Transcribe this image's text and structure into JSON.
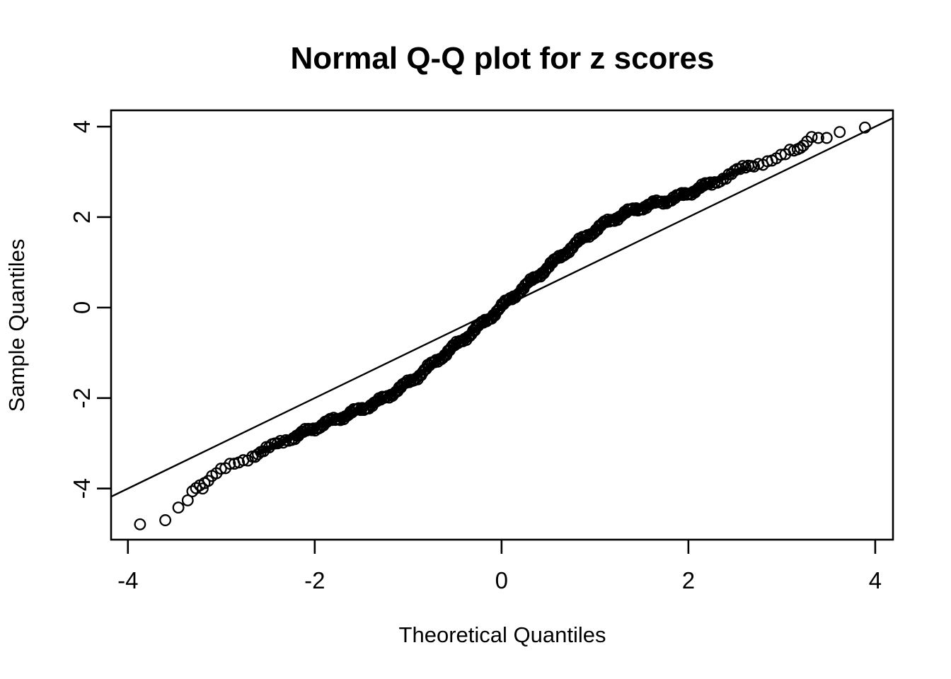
{
  "title": "Normal Q-Q plot for z scores",
  "chart_data": {
    "type": "scatter",
    "subtype": "qq-plot",
    "title": "Normal Q-Q plot for z scores",
    "xlabel": "Theoretical Quantiles",
    "ylabel": "Sample Quantiles",
    "xlim": [
      -4.18,
      4.19
    ],
    "ylim": [
      -5.13,
      4.36
    ],
    "x_ticks": [
      -4,
      -2,
      0,
      2,
      4
    ],
    "y_ticks": [
      -4,
      -2,
      0,
      2,
      4
    ],
    "grid": false,
    "legend": "none",
    "marker": "open-circle",
    "marker_radius_px": 7.3,
    "reference_line": {
      "slope": 1.0,
      "intercept": 0.0
    },
    "curve_points": [
      [
        -3.1,
        -3.76
      ],
      [
        -2.9,
        -3.48
      ],
      [
        -2.7,
        -3.3
      ],
      [
        -2.5,
        -3.12
      ],
      [
        -2.3,
        -2.92
      ],
      [
        -2.1,
        -2.75
      ],
      [
        -1.9,
        -2.57
      ],
      [
        -1.7,
        -2.41
      ],
      [
        -1.5,
        -2.24
      ],
      [
        -1.3,
        -2.06
      ],
      [
        -1.1,
        -1.8
      ],
      [
        -0.9,
        -1.52
      ],
      [
        -0.7,
        -1.18
      ],
      [
        -0.5,
        -0.85
      ],
      [
        -0.3,
        -0.52
      ],
      [
        -0.1,
        -0.17
      ],
      [
        0.0,
        0.02
      ],
      [
        0.1,
        0.2
      ],
      [
        0.3,
        0.55
      ],
      [
        0.5,
        0.9
      ],
      [
        0.7,
        1.25
      ],
      [
        0.9,
        1.57
      ],
      [
        1.1,
        1.85
      ],
      [
        1.3,
        2.07
      ],
      [
        1.5,
        2.22
      ],
      [
        1.7,
        2.33
      ],
      [
        1.9,
        2.45
      ],
      [
        2.1,
        2.62
      ],
      [
        2.3,
        2.8
      ],
      [
        2.5,
        3.0
      ],
      [
        2.7,
        3.15
      ],
      [
        2.9,
        3.3
      ],
      [
        3.1,
        3.45
      ]
    ],
    "left_tail_points": [
      [
        -3.87,
        -4.79
      ],
      [
        -3.6,
        -4.7
      ],
      [
        -3.46,
        -4.42
      ],
      [
        -3.36,
        -4.26
      ],
      [
        -3.31,
        -4.06
      ],
      [
        -3.27,
        -3.99
      ],
      [
        -3.23,
        -3.93
      ],
      [
        -3.2,
        -4.0
      ],
      [
        -3.18,
        -3.88
      ],
      [
        -3.14,
        -3.83
      ]
    ],
    "right_tail_points": [
      [
        3.13,
        3.47
      ],
      [
        3.17,
        3.5
      ],
      [
        3.2,
        3.53
      ],
      [
        3.23,
        3.58
      ],
      [
        3.27,
        3.67
      ],
      [
        3.32,
        3.77
      ],
      [
        3.39,
        3.75
      ],
      [
        3.48,
        3.75
      ],
      [
        3.62,
        3.88
      ],
      [
        3.89,
        3.98
      ]
    ],
    "colors": {
      "points": "#000000",
      "reference_line": "#000000",
      "axis": "#000000",
      "background": "#ffffff"
    }
  }
}
